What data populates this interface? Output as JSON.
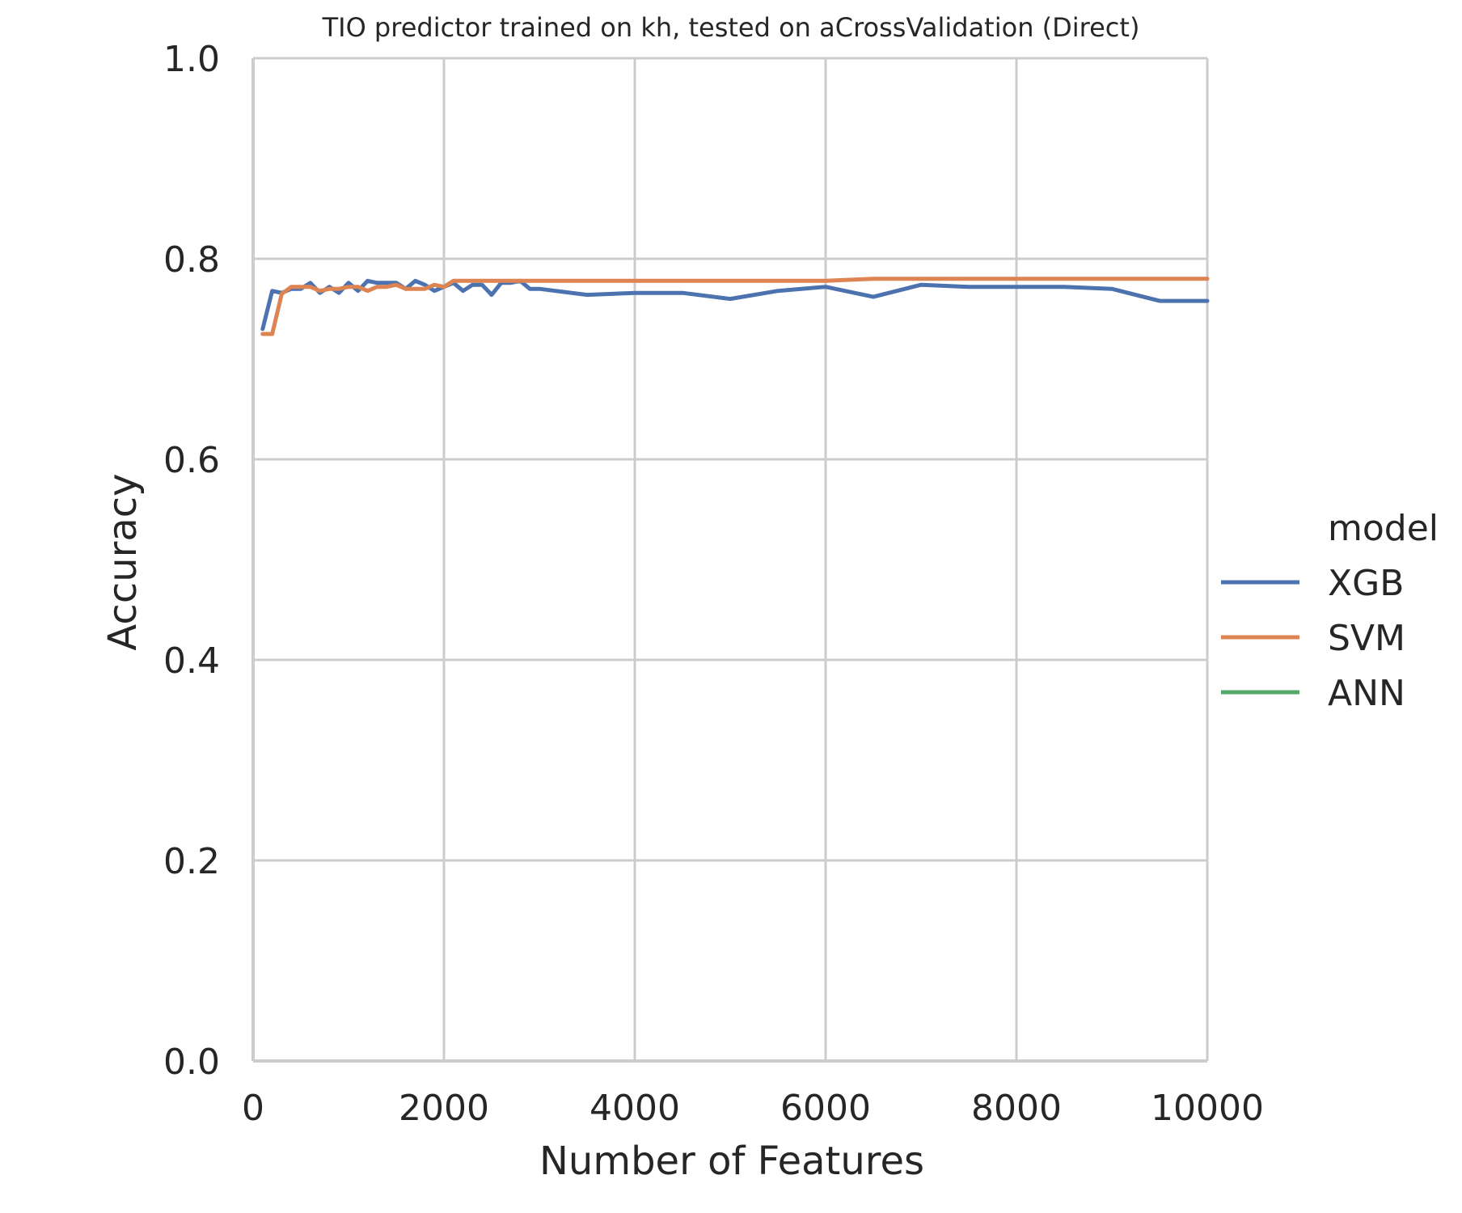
{
  "chart_data": {
    "type": "line",
    "title": "TIO predictor trained on kh, tested on aCrossValidation (Direct)",
    "xlabel": "Number of Features",
    "ylabel": "Accuracy",
    "xlim": [
      0,
      10000
    ],
    "ylim": [
      0.0,
      1.0
    ],
    "xticks": [
      "0",
      "2000",
      "4000",
      "6000",
      "8000",
      "10000"
    ],
    "yticks": [
      "0.0",
      "0.2",
      "0.4",
      "0.6",
      "0.8",
      "1.0"
    ],
    "grid": true,
    "legend": {
      "title": "model",
      "placement": "right"
    },
    "series": [
      {
        "name": "XGB",
        "color": "#4c72b0",
        "x": [
          100,
          200,
          300,
          400,
          500,
          600,
          700,
          800,
          900,
          1000,
          1100,
          1200,
          1300,
          1400,
          1500,
          1600,
          1700,
          1800,
          1900,
          2000,
          2100,
          2200,
          2300,
          2400,
          2500,
          2600,
          2700,
          2800,
          2900,
          3000,
          3500,
          4000,
          4500,
          5000,
          5500,
          6000,
          6500,
          7000,
          7500,
          8000,
          8500,
          9000,
          9500,
          10000
        ],
        "y": [
          0.73,
          0.768,
          0.766,
          0.77,
          0.77,
          0.776,
          0.766,
          0.772,
          0.766,
          0.776,
          0.768,
          0.778,
          0.776,
          0.776,
          0.776,
          0.77,
          0.778,
          0.774,
          0.768,
          0.772,
          0.776,
          0.768,
          0.774,
          0.774,
          0.764,
          0.776,
          0.776,
          0.778,
          0.77,
          0.77,
          0.764,
          0.766,
          0.766,
          0.76,
          0.768,
          0.772,
          0.762,
          0.774,
          0.772,
          0.772,
          0.772,
          0.77,
          0.758,
          0.758
        ]
      },
      {
        "name": "SVM",
        "color": "#dd8452",
        "x": [
          100,
          200,
          300,
          400,
          500,
          600,
          700,
          800,
          900,
          1000,
          1100,
          1200,
          1300,
          1400,
          1500,
          1600,
          1700,
          1800,
          1900,
          2000,
          2100,
          2500,
          3000,
          3500,
          4000,
          4500,
          5000,
          5500,
          6000,
          6500,
          7000,
          7500,
          8000,
          8500,
          9000,
          9500,
          10000
        ],
        "y": [
          0.725,
          0.725,
          0.765,
          0.772,
          0.772,
          0.772,
          0.768,
          0.77,
          0.77,
          0.772,
          0.772,
          0.768,
          0.772,
          0.772,
          0.774,
          0.77,
          0.77,
          0.77,
          0.774,
          0.772,
          0.778,
          0.778,
          0.778,
          0.778,
          0.778,
          0.778,
          0.778,
          0.778,
          0.778,
          0.78,
          0.78,
          0.78,
          0.78,
          0.78,
          0.78,
          0.78,
          0.78
        ]
      },
      {
        "name": "ANN",
        "color": "#55a868",
        "x": [],
        "y": []
      }
    ]
  }
}
